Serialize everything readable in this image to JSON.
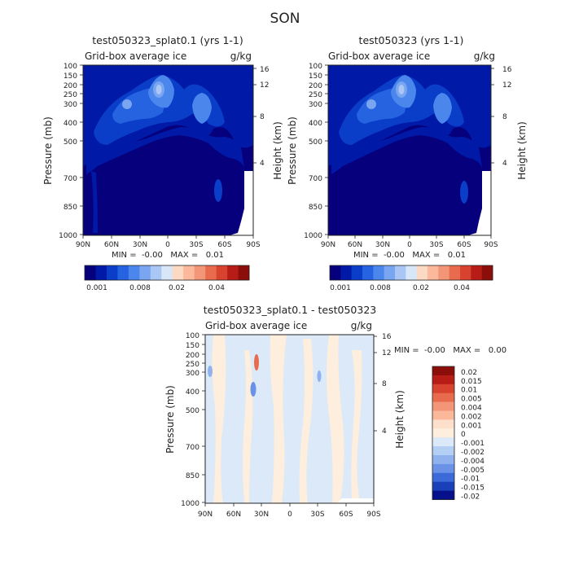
{
  "page_title": "SON",
  "chart_data": [
    {
      "type": "heatmap",
      "title": "test050323_splat0.1 (yrs 1-1)",
      "subtitle_left": "Grid-box average ice",
      "subtitle_right": "g/kg",
      "ylabel": "Pressure (mb)",
      "ylabel_right": "Height (km)",
      "x_ticks": [
        "90N",
        "60N",
        "30N",
        "0",
        "30S",
        "60S",
        "90S"
      ],
      "y_ticks": [
        "100",
        "150",
        "200",
        "250",
        "300",
        "400",
        "500",
        "700",
        "850",
        "1000"
      ],
      "y_right_ticks": [
        "16",
        "12",
        "8",
        "4"
      ],
      "stats": "MIN =  -0.00   MAX =   0.01",
      "colorbar_labels": [
        "0.001",
        "0.008",
        "0.02",
        "0.04"
      ]
    },
    {
      "type": "heatmap",
      "title": "test050323 (yrs 1-1)",
      "subtitle_left": "Grid-box average ice",
      "subtitle_right": "g/kg",
      "ylabel": "Pressure (mb)",
      "ylabel_right": "Height (km)",
      "x_ticks": [
        "90N",
        "60N",
        "30N",
        "0",
        "30S",
        "60S",
        "90S"
      ],
      "y_ticks": [
        "100",
        "150",
        "200",
        "250",
        "300",
        "400",
        "500",
        "700",
        "850",
        "1000"
      ],
      "y_right_ticks": [
        "16",
        "12",
        "8",
        "4"
      ],
      "stats": "MIN =  -0.00   MAX =   0.01",
      "colorbar_labels": [
        "0.001",
        "0.008",
        "0.02",
        "0.04"
      ]
    },
    {
      "type": "heatmap",
      "title": "test050323_splat0.1 - test050323",
      "subtitle_left": "Grid-box average ice",
      "subtitle_right": "g/kg",
      "ylabel": "Pressure (mb)",
      "ylabel_right": "Height (km)",
      "x_ticks": [
        "90N",
        "60N",
        "30N",
        "0",
        "30S",
        "60S",
        "90S"
      ],
      "y_ticks": [
        "100",
        "150",
        "200",
        "250",
        "300",
        "400",
        "500",
        "700",
        "850",
        "1000"
      ],
      "y_right_ticks": [
        "16",
        "12",
        "8",
        "4"
      ],
      "stats": "MIN =  -0.00   MAX =   0.00",
      "legend_labels": [
        "0.02",
        "0.015",
        "0.01",
        "0.005",
        "0.004",
        "0.002",
        "0.001",
        "0",
        "-0.001",
        "-0.002",
        "-0.004",
        "-0.005",
        "-0.01",
        "-0.015",
        "-0.02"
      ]
    }
  ],
  "colors": {
    "seq_scale": [
      "#06007d",
      "#0019a6",
      "#0a3dc8",
      "#2563e0",
      "#4a86ec",
      "#7aa5f0",
      "#a9c6f5",
      "#d7e7f7",
      "#fcd9c3",
      "#fbb89b",
      "#f39577",
      "#e86b4e",
      "#d8432f",
      "#b81c16",
      "#8c0e0a"
    ],
    "diff_scale": [
      "#8c0e0a",
      "#b81c16",
      "#d8432f",
      "#e86b4e",
      "#f39577",
      "#fbb89b",
      "#fde0cc",
      "#fdeede",
      "#dbe9f8",
      "#b4cff4",
      "#8fb2ee",
      "#6a93e8",
      "#3c6ad8",
      "#1940b8",
      "#05108a"
    ]
  }
}
